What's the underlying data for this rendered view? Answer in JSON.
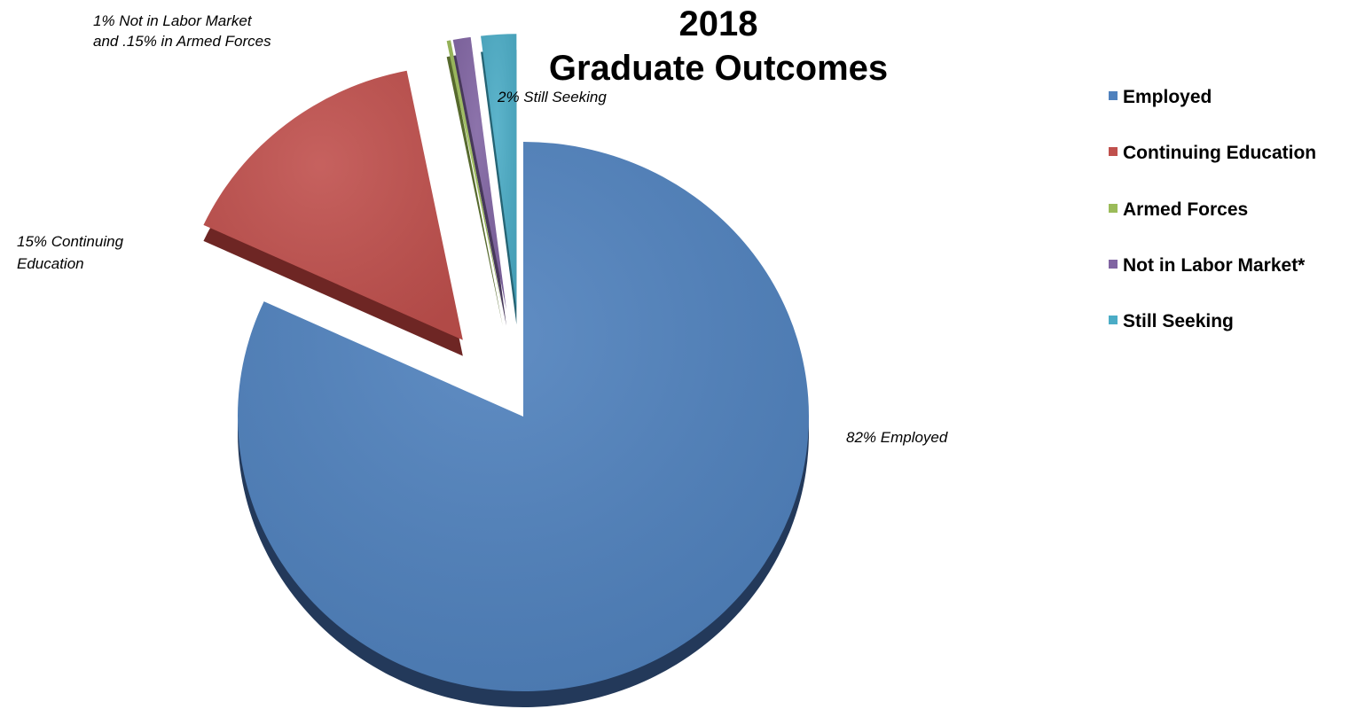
{
  "chart_data": {
    "type": "pie",
    "title_line1": "2018",
    "title_line2": "Graduate Outcomes",
    "slices": [
      {
        "name": "Employed",
        "value": 82,
        "color": "#4F81BD",
        "side": "#23395A",
        "label": "82% Employed"
      },
      {
        "name": "Continuing Education",
        "value": 15,
        "color": "#C0504D",
        "side": "#6E2624",
        "label": "15% Continuing Education",
        "label_lines": [
          "15% Continuing",
          "Education"
        ]
      },
      {
        "name": "Armed Forces",
        "value": 0.15,
        "color": "#9BBB59",
        "side": "#56692D",
        "label": ""
      },
      {
        "name": "Not in Labor Market*",
        "value": 1,
        "color": "#8064A2",
        "side": "#47385A",
        "label": "1% Not in Labor Market and .15% in Armed Forces",
        "label_lines": [
          "1% Not in Labor Market",
          "and .15% in Armed Forces"
        ]
      },
      {
        "name": "Still Seeking",
        "value": 2,
        "color": "#4BACC6",
        "side": "#256373",
        "label": "2% Still Seeking"
      }
    ],
    "legend_position": "right",
    "legend": [
      "Employed",
      "Continuing Education",
      "Armed Forces",
      "Not in Labor Market*",
      "Still Seeking"
    ]
  }
}
